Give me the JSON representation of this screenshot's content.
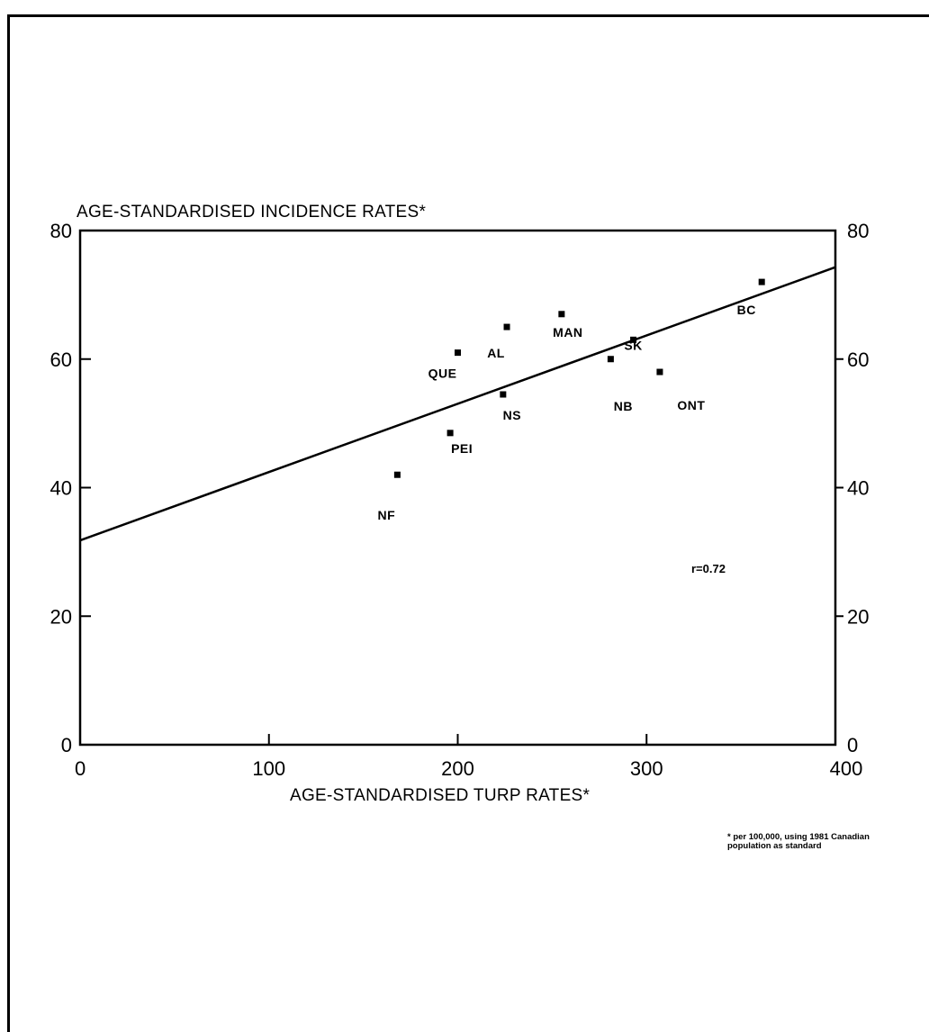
{
  "chart_data": {
    "type": "scatter",
    "title": "",
    "xlabel": "AGE-STANDARDISED TURP RATES*",
    "ylabel": "AGE-STANDARDISED INCIDENCE RATES*",
    "xlim": [
      0,
      400
    ],
    "ylim": [
      0,
      80
    ],
    "x_ticks": [
      0,
      100,
      200,
      300,
      400
    ],
    "y_ticks": [
      0,
      20,
      40,
      60,
      80
    ],
    "y2_ticks": [
      0,
      20,
      40,
      60,
      80
    ],
    "grid": false,
    "points": [
      {
        "label": "NF",
        "x": 168,
        "y": 42
      },
      {
        "label": "PEI",
        "x": 196,
        "y": 48.5
      },
      {
        "label": "QUE",
        "x": 200,
        "y": 61
      },
      {
        "label": "NS",
        "x": 224,
        "y": 54.5
      },
      {
        "label": "AL",
        "x": 226,
        "y": 65
      },
      {
        "label": "MAN",
        "x": 255,
        "y": 67
      },
      {
        "label": "NB",
        "x": 281,
        "y": 60
      },
      {
        "label": "SK",
        "x": 293,
        "y": 63
      },
      {
        "label": "ONT",
        "x": 307,
        "y": 58
      },
      {
        "label": "BC",
        "x": 361,
        "y": 72
      }
    ],
    "trendline": {
      "x": [
        0,
        400
      ],
      "y": [
        31.8,
        74.3
      ]
    },
    "annotations": [
      "r=0.72"
    ],
    "footnote": [
      "* per 100,000, using 1981 Canadian",
      "population as standard"
    ]
  }
}
